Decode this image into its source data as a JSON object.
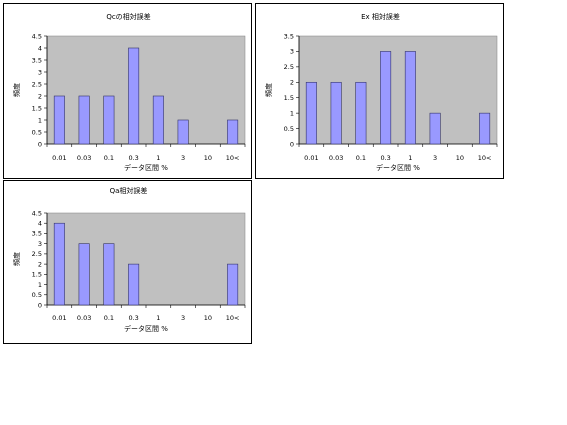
{
  "colors": {
    "plot_bg": "#c0c0c0",
    "bar_fill": "#9999ff",
    "bar_stroke": "#333366"
  },
  "chart_data": [
    {
      "type": "bar",
      "title": "Qcの相対誤差",
      "xlabel": "データ区間 %",
      "ylabel": "頻度",
      "categories": [
        "0.01",
        "0.03",
        "0.1",
        "0.3",
        "1",
        "3",
        "10",
        "10<"
      ],
      "values": [
        2,
        2,
        2,
        4,
        2,
        1,
        0,
        1
      ],
      "ylim": [
        0,
        4.5
      ],
      "yticks": [
        "0",
        "0.5",
        "1",
        "1.5",
        "2",
        "2.5",
        "3",
        "3.5",
        "4",
        "4.5"
      ],
      "grid": false,
      "legend": "none"
    },
    {
      "type": "bar",
      "title": "Ex 相対誤差",
      "xlabel": "データ区間 %",
      "ylabel": "頻度",
      "categories": [
        "0.01",
        "0.03",
        "0.1",
        "0.3",
        "1",
        "3",
        "10",
        "10<"
      ],
      "values": [
        2,
        2,
        2,
        3,
        3,
        1,
        0,
        1
      ],
      "ylim": [
        0,
        3.5
      ],
      "yticks": [
        "0",
        "0.5",
        "1",
        "1.5",
        "2",
        "2.5",
        "3",
        "3.5"
      ],
      "grid": false,
      "legend": "none"
    },
    {
      "type": "bar",
      "title": "Qa相対誤差",
      "xlabel": "データ区間 %",
      "ylabel": "頻度",
      "categories": [
        "0.01",
        "0.03",
        "0.1",
        "0.3",
        "1",
        "3",
        "10",
        "10<"
      ],
      "values": [
        4,
        3,
        3,
        2,
        0,
        0,
        0,
        2
      ],
      "ylim": [
        0,
        4.5
      ],
      "yticks": [
        "0",
        "0.5",
        "1",
        "1.5",
        "2",
        "2.5",
        "3",
        "3.5",
        "4",
        "4.5"
      ],
      "grid": false,
      "legend": "none"
    }
  ]
}
